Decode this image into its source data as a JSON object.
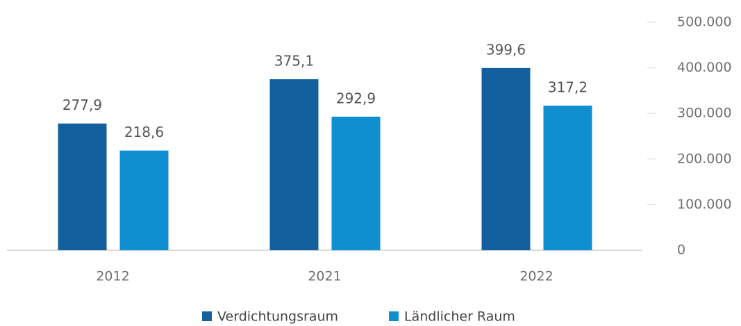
{
  "chart_data": {
    "type": "bar",
    "categories": [
      "2012",
      "2021",
      "2022"
    ],
    "series": [
      {
        "name": "Verdichtungsraum",
        "color": "#14609e",
        "values": [
          277900,
          375100,
          399600
        ],
        "value_labels": [
          "277,9",
          "375,1",
          "399,6"
        ]
      },
      {
        "name": "Ländlicher Raum",
        "color": "#0f8fd0",
        "values": [
          218600,
          292900,
          317200
        ],
        "value_labels": [
          "218,6",
          "292,9",
          "317,2"
        ]
      }
    ],
    "ylim": [
      0,
      500000
    ],
    "yticks": [
      0,
      {
        "value": 100000,
        "label": "100.000"
      },
      {
        "value": 200000,
        "label": "200.000"
      },
      {
        "value": 300000,
        "label": "300.000"
      },
      {
        "value": 400000,
        "label": "400.000"
      },
      {
        "value": 500000,
        "label": "500.000"
      }
    ],
    "legend": "bottom"
  }
}
